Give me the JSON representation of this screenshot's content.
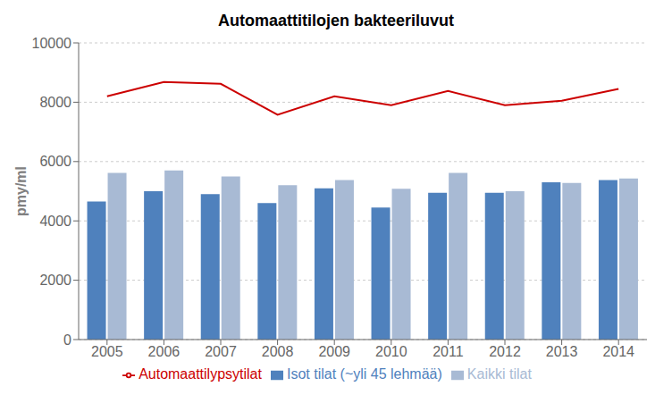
{
  "chart_data": {
    "type": "bar",
    "title": "Automaattitilojen bakteeriluvut",
    "ylabel": "pmy/ml",
    "categories": [
      "2005",
      "2006",
      "2007",
      "2008",
      "2009",
      "2010",
      "2011",
      "2012",
      "2013",
      "2014"
    ],
    "series": [
      {
        "name": "Isot tilat (~yli 45 lehmää)",
        "color": "#4F81BD",
        "values": [
          4650,
          5000,
          4900,
          4600,
          5100,
          4450,
          4950,
          4950,
          5300,
          5380
        ]
      },
      {
        "name": "Kaikki tilat",
        "color": "#A8BAD4",
        "values": [
          5620,
          5700,
          5500,
          5200,
          5380,
          5080,
          5620,
          5000,
          5280,
          5430
        ]
      },
      {
        "name": "Automaattilypsytilat",
        "type": "line",
        "color": "#CC0000",
        "values": [
          8200,
          8680,
          8620,
          7580,
          8200,
          7900,
          8380,
          7900,
          8050,
          8450
        ]
      }
    ],
    "ylim": [
      0,
      10000
    ],
    "yticks": [
      0,
      2000,
      4000,
      6000,
      8000,
      10000
    ],
    "grid": true,
    "legend": "bottom"
  }
}
